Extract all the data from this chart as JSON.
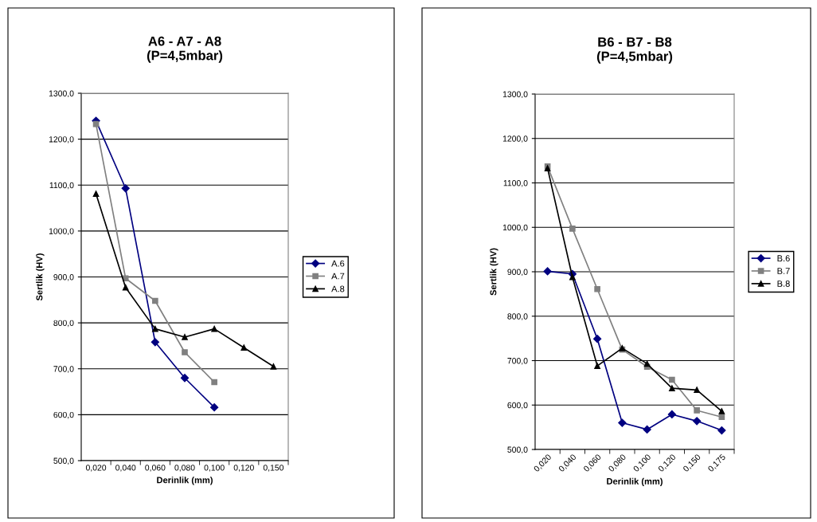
{
  "chart_data": [
    {
      "type": "line",
      "title": "A6 - A7 - A8\n(P=4,5mbar)",
      "xlabel": "Derinlik (mm)",
      "ylabel": "Sertlik (HV)",
      "categories": [
        "0,020",
        "0,040",
        "0,060",
        "0,080",
        "0,100",
        "0,120",
        "0,150"
      ],
      "ylim": [
        500,
        1300
      ],
      "yticks": [
        {
          "value": 500,
          "label": "500,0"
        },
        {
          "value": 600,
          "label": "600,0"
        },
        {
          "value": 700,
          "label": "700,0"
        },
        {
          "value": 800,
          "label": "800,0"
        },
        {
          "value": 900,
          "label": "900,0"
        },
        {
          "value": 1000,
          "label": "1000,0"
        },
        {
          "value": 1100,
          "label": "1100,0"
        },
        {
          "value": 1200,
          "label": "1200,0"
        },
        {
          "value": 1300,
          "label": "1300,0"
        }
      ],
      "grid": "y",
      "legend": "right",
      "series": [
        {
          "name": "A.6",
          "color": "#000080",
          "marker": "diamond",
          "values": [
            1240,
            1093,
            758,
            680,
            616,
            null,
            null
          ]
        },
        {
          "name": "A.7",
          "color": "#808080",
          "marker": "square",
          "values": [
            1233,
            897,
            848,
            736,
            671,
            null,
            null
          ]
        },
        {
          "name": "A.8",
          "color": "#000000",
          "marker": "triangle",
          "values": [
            1081,
            877,
            787,
            769,
            787,
            746,
            705
          ]
        }
      ]
    },
    {
      "type": "line",
      "title": "B6 - B7 - B8\n(P=4,5mbar)",
      "xlabel": "Derinlik (mm)",
      "ylabel": "Sertlik (HV)",
      "categories": [
        "0,020",
        "0,040",
        "0,060",
        "0,080",
        "0,100",
        "0,120",
        "0,150",
        "0,175"
      ],
      "ylim": [
        500,
        1300
      ],
      "yticks": [
        {
          "value": 500,
          "label": "500,0"
        },
        {
          "value": 600,
          "label": "600,0"
        },
        {
          "value": 700,
          "label": "700,0"
        },
        {
          "value": 800,
          "label": "800,0"
        },
        {
          "value": 900,
          "label": "900,0"
        },
        {
          "value": 1000,
          "label": "1000,0"
        },
        {
          "value": 1100,
          "label": "1100,0"
        },
        {
          "value": 1200,
          "label": "1200,0"
        },
        {
          "value": 1300,
          "label": "1300,0"
        }
      ],
      "grid": "y",
      "legend": "right",
      "series": [
        {
          "name": "B.6",
          "color": "#000080",
          "marker": "diamond",
          "values": [
            901,
            895,
            749,
            560,
            545,
            579,
            564,
            543
          ]
        },
        {
          "name": "B.7",
          "color": "#808080",
          "marker": "square",
          "values": [
            1137,
            997,
            861,
            725,
            686,
            657,
            588,
            573
          ]
        },
        {
          "name": "B.8",
          "color": "#000000",
          "marker": "triangle",
          "values": [
            1133,
            888,
            688,
            728,
            693,
            638,
            634,
            586
          ]
        }
      ]
    }
  ]
}
